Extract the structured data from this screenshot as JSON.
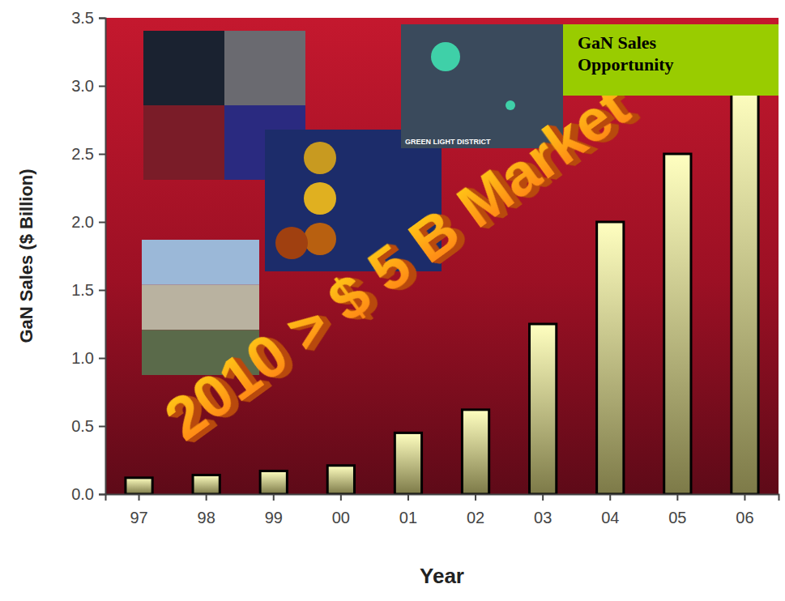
{
  "chart_data": {
    "type": "bar",
    "title": "GaN Sales Opportunity",
    "annotations": [
      "2010 > $ 5 B Market",
      "GREEN LIGHT DISTRICT"
    ],
    "x_label": "Year",
    "y_label": "GaN Sales ($ Billion)",
    "categories": [
      "97",
      "98",
      "99",
      "00",
      "01",
      "02",
      "03",
      "04",
      "05",
      "06"
    ],
    "values": [
      0.12,
      0.14,
      0.17,
      0.21,
      0.45,
      0.62,
      1.25,
      2.0,
      2.5,
      3.0
    ],
    "color": "#ffffc0",
    "ylim": [
      0,
      3.5
    ],
    "yticks": [
      {
        "value": 0,
        "label": "0.0"
      },
      0.5,
      {
        "value": 1,
        "label": "1.0"
      },
      1.5,
      {
        "value": 2,
        "label": "2.0"
      },
      2.5,
      {
        "value": 3,
        "label": "3.0"
      },
      3.5
    ],
    "grid": false
  }
}
